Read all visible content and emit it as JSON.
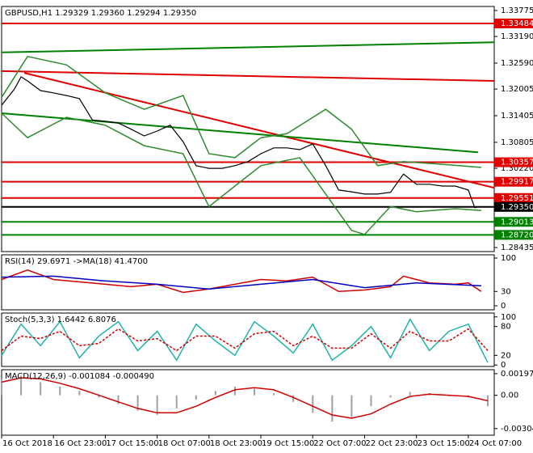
{
  "chart_data": [
    {
      "type": "line",
      "title": "GBPUSD,H1  1.29329 1.29360 1.29294 1.29350",
      "xlim": [
        0,
        152
      ],
      "ylim": [
        1.28344,
        1.33866
      ],
      "yticks": [
        {
          "value": 1.33775,
          "label": "1.33775"
        },
        {
          "value": 1.3319,
          "label": "1.33190"
        },
        {
          "value": 1.3259,
          "label": "1.32590"
        },
        {
          "value": 1.32005,
          "label": "1.32005"
        },
        {
          "value": 1.31405,
          "label": "1.31405"
        },
        {
          "value": 1.30805,
          "label": "1.30805"
        },
        {
          "value": 1.3022,
          "label": "1.30220"
        },
        {
          "value": 1.28435,
          "label": "1.28435"
        }
      ],
      "series": [
        {
          "color": "#000000",
          "x": [
            0,
            4,
            6,
            8,
            12,
            16,
            20,
            24,
            28,
            32,
            36,
            40,
            44,
            48,
            52,
            56,
            60,
            64,
            68,
            72,
            76,
            80,
            84,
            88,
            92,
            96,
            100,
            104,
            108,
            112,
            116,
            120,
            124,
            128,
            132,
            136,
            140,
            144,
            146,
            147
          ],
          "values": [
            1.3164,
            1.3201,
            1.3228,
            1.3219,
            1.3197,
            1.3192,
            1.3186,
            1.3179,
            1.3131,
            1.3128,
            1.3124,
            1.311,
            1.3095,
            1.3106,
            1.3119,
            1.3082,
            1.3028,
            1.3022,
            1.3022,
            1.3028,
            1.3037,
            1.3055,
            1.3068,
            1.3068,
            1.3064,
            1.3077,
            1.3028,
            1.2973,
            1.2969,
            1.2964,
            1.2964,
            1.2968,
            1.3009,
            1.2986,
            1.2986,
            1.2982,
            1.2982,
            1.2973,
            1.2933,
            1.2935
          ]
        },
        {
          "color": "#2e8b2e",
          "x": [
            0,
            8,
            20,
            32,
            44,
            56,
            64,
            72,
            80,
            88,
            100,
            108,
            116,
            124,
            136,
            148
          ],
          "values": [
            1.3182,
            1.3274,
            1.3255,
            1.3192,
            1.3155,
            1.3186,
            1.3055,
            1.3046,
            1.3091,
            1.31,
            1.3155,
            1.311,
            1.3028,
            1.3037,
            1.3031,
            1.3024
          ]
        },
        {
          "color": "#2e8b2e",
          "x": [
            0,
            8,
            20,
            32,
            44,
            56,
            64,
            72,
            80,
            92,
            100,
            108,
            112,
            120,
            128,
            140,
            148
          ],
          "values": [
            1.3146,
            1.3091,
            1.3137,
            1.3119,
            1.3073,
            1.3055,
            1.2936,
            1.2982,
            1.3028,
            1.3046,
            1.2964,
            1.2882,
            1.2873,
            1.2936,
            1.2924,
            1.2931,
            1.2927
          ]
        }
      ],
      "trendlines": [
        {
          "color": "#008000",
          "x": [
            0,
            152
          ],
          "values": [
            1.3283,
            1.3306
          ]
        },
        {
          "color": "#e00000",
          "x": [
            0,
            152
          ],
          "values": [
            1.3241,
            1.3219
          ]
        },
        {
          "color": "#e00000",
          "x": [
            7,
            152
          ],
          "values": [
            1.3237,
            1.2978
          ]
        },
        {
          "color": "#008000",
          "x": [
            0,
            147
          ],
          "values": [
            1.3146,
            1.3058
          ]
        }
      ],
      "levels": [
        {
          "value": 1.33484,
          "label": "1.33484",
          "color": "#e00000"
        },
        {
          "value": 1.30357,
          "label": "1.30357",
          "color": "#e00000"
        },
        {
          "value": 1.29917,
          "label": "1.29917",
          "color": "#e00000"
        },
        {
          "value": 1.29551,
          "label": "1.29551",
          "color": "#e00000"
        },
        {
          "value": 1.2935,
          "label": "1.29350",
          "color": "#000000"
        },
        {
          "value": 1.29013,
          "label": "1.29013",
          "color": "#008000"
        },
        {
          "value": 1.2872,
          "label": "1.28720",
          "color": "#008000"
        }
      ]
    },
    {
      "type": "line",
      "title": "RSI(14) 29.6971  ->MA(18) 41.4700",
      "xlim": [
        0,
        152
      ],
      "ylim": [
        -8.5,
        106.8
      ],
      "yticks": [
        100,
        30,
        0
      ],
      "series": [
        {
          "color": "#d00000",
          "x": [
            0,
            8,
            16,
            24,
            32,
            40,
            48,
            56,
            64,
            72,
            80,
            88,
            96,
            104,
            112,
            120,
            124,
            132,
            140,
            144,
            148
          ],
          "values": [
            55,
            75,
            55,
            50,
            45,
            40,
            45,
            28,
            35,
            45,
            55,
            52,
            60,
            30,
            33,
            40,
            62,
            48,
            45,
            48,
            30
          ]
        },
        {
          "color": "#0000c0",
          "x": [
            0,
            16,
            32,
            48,
            64,
            80,
            96,
            112,
            128,
            148
          ],
          "values": [
            60,
            62,
            52,
            45,
            35,
            45,
            55,
            38,
            48,
            42
          ]
        }
      ]
    },
    {
      "type": "line",
      "title": "Stoch(5,3,3) 1.6442 6.8076",
      "xlim": [
        0,
        152
      ],
      "ylim": [
        -3,
        108
      ],
      "yticks": [
        100,
        80,
        20,
        0
      ],
      "series": [
        {
          "color": "#20b2aa",
          "x": [
            0,
            6,
            12,
            18,
            24,
            30,
            36,
            42,
            48,
            54,
            60,
            66,
            72,
            78,
            84,
            90,
            96,
            102,
            108,
            114,
            120,
            126,
            132,
            138,
            144,
            150
          ],
          "values": [
            20,
            85,
            40,
            90,
            15,
            60,
            90,
            30,
            70,
            10,
            85,
            50,
            20,
            90,
            60,
            25,
            85,
            10,
            40,
            80,
            15,
            95,
            30,
            70,
            85,
            5
          ]
        },
        {
          "color": "#d00000",
          "dash": true,
          "x": [
            0,
            6,
            12,
            18,
            24,
            30,
            36,
            42,
            48,
            54,
            60,
            66,
            72,
            78,
            84,
            90,
            96,
            102,
            108,
            114,
            120,
            126,
            132,
            138,
            144,
            150
          ],
          "values": [
            30,
            60,
            55,
            70,
            40,
            45,
            75,
            50,
            55,
            30,
            60,
            60,
            35,
            65,
            70,
            40,
            60,
            35,
            35,
            65,
            35,
            70,
            50,
            50,
            75,
            30
          ]
        }
      ]
    },
    {
      "type": "bar",
      "title": "MACD(12,26,9) -0.001084 -0.000490",
      "xlim": [
        0,
        152
      ],
      "ylim": [
        -0.00365,
        0.00234
      ],
      "yticks": [
        0.001973,
        {
          "value": 0,
          "label": "0.00"
        },
        -0.003044
      ],
      "xticks": [
        {
          "value": 0,
          "label": "16 Oct 2018"
        },
        {
          "value": 16,
          "label": "16 Oct 23:00"
        },
        {
          "value": 32,
          "label": "17 Oct 15:00"
        },
        {
          "value": 48,
          "label": "18 Oct 07:00"
        },
        {
          "value": 64,
          "label": "18 Oct 23:00"
        },
        {
          "value": 80,
          "label": "19 Oct 15:00"
        },
        {
          "value": 96,
          "label": "22 Oct 07:00"
        },
        {
          "value": 112,
          "label": "22 Oct 23:00"
        },
        {
          "value": 128,
          "label": "23 Oct 15:00"
        },
        {
          "value": 144,
          "label": "24 Oct 07:00"
        }
      ],
      "series": [
        {
          "type": "bar",
          "color": "#a0a0a0",
          "x": [
            0,
            6,
            12,
            18,
            24,
            30,
            36,
            42,
            48,
            54,
            60,
            66,
            72,
            78,
            84,
            90,
            96,
            102,
            108,
            114,
            120,
            126,
            132,
            138,
            144,
            150
          ],
          "values": [
            0.0015,
            0.0018,
            0.0012,
            0.0008,
            0.0004,
            -0.0002,
            -0.0008,
            -0.0014,
            -0.0018,
            -0.0012,
            -0.0004,
            0.0004,
            0.0008,
            0.0006,
            0.0002,
            -0.0006,
            -0.0016,
            -0.0024,
            -0.002,
            -0.001,
            -0.0002,
            0.0003,
            0.0002,
            -0.0001,
            -0.0002,
            -0.001
          ]
        },
        {
          "type": "line",
          "color": "#d00000",
          "x": [
            0,
            6,
            12,
            18,
            24,
            30,
            36,
            42,
            48,
            54,
            60,
            66,
            72,
            78,
            84,
            90,
            96,
            102,
            108,
            114,
            120,
            126,
            132,
            138,
            144,
            150
          ],
          "values": [
            0.0012,
            0.0016,
            0.0015,
            0.0011,
            0.0006,
            0,
            -0.0006,
            -0.0012,
            -0.0016,
            -0.0016,
            -0.001,
            -0.0002,
            0.0005,
            0.0007,
            0.0005,
            -0.0002,
            -0.001,
            -0.0018,
            -0.0021,
            -0.0017,
            -0.0008,
            -0.0001,
            0.0001,
            0,
            -0.0001,
            -0.0005
          ]
        }
      ]
    }
  ]
}
